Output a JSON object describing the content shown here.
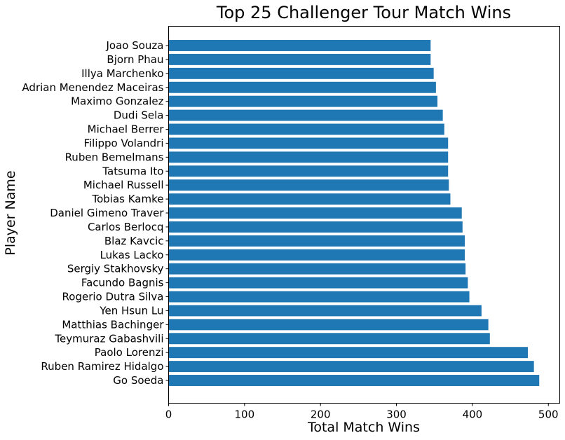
{
  "chart_data": {
    "type": "bar",
    "orientation": "horizontal",
    "title": "Top 25 Challenger Tour Match Wins",
    "xlabel": "Total Match Wins",
    "ylabel": "Player Name",
    "xlim": [
      0,
      515
    ],
    "xticks": [
      0,
      100,
      200,
      300,
      400,
      500
    ],
    "grid": false,
    "bar_color": "#1f77b4",
    "categories": [
      "Joao Souza",
      "Bjorn Phau",
      "Illya Marchenko",
      "Adrian Menendez Maceiras",
      "Maximo Gonzalez",
      "Dudi Sela",
      "Michael Berrer",
      "Filippo Volandri",
      "Ruben Bemelmans",
      "Tatsuma Ito",
      "Michael Russell",
      "Tobias Kamke",
      "Daniel Gimeno Traver",
      "Carlos Berlocq",
      "Blaz Kavcic",
      "Lukas Lacko",
      "Sergiy Stakhovsky",
      "Facundo Bagnis",
      "Rogerio Dutra Silva",
      "Yen Hsun Lu",
      "Matthias Bachinger",
      "Teymuraz Gabashvili",
      "Paolo Lorenzi",
      "Ruben Ramirez Hidalgo",
      "Go Soeda"
    ],
    "values": [
      345,
      345,
      349,
      352,
      354,
      361,
      363,
      368,
      368,
      368,
      369,
      371,
      386,
      387,
      390,
      390,
      391,
      394,
      396,
      412,
      421,
      423,
      473,
      481,
      488
    ]
  }
}
